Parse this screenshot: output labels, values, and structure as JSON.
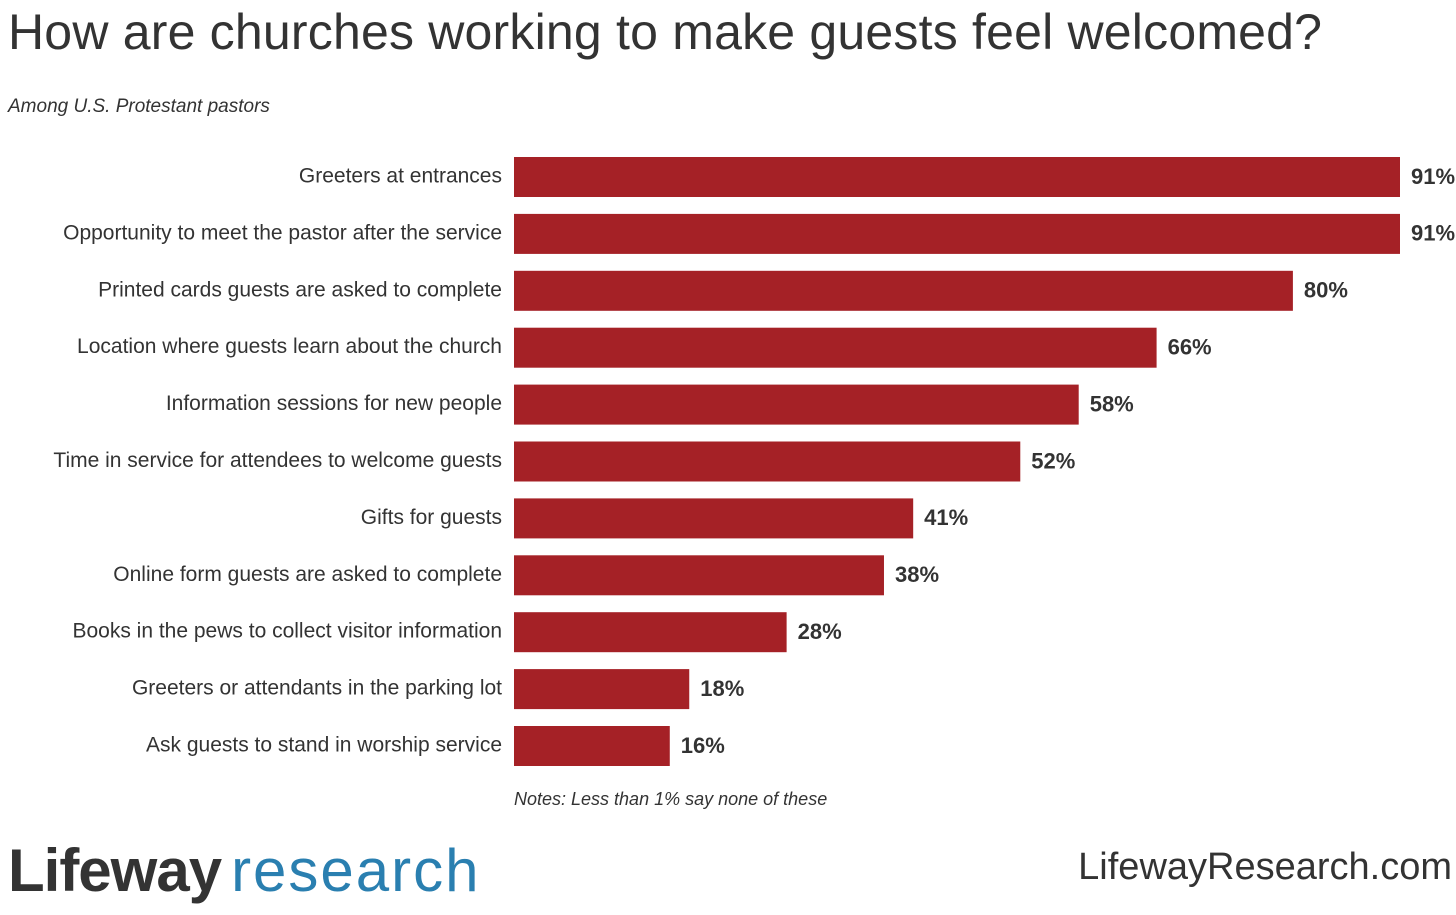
{
  "title": "How are churches working to make guests feel welcomed?",
  "subtitle": "Among U.S. Protestant pastors",
  "notes": "Notes: Less than 1% say none of these",
  "logo": {
    "part1": "Lifeway",
    "part2": "research"
  },
  "site": "LifewayResearch.com",
  "colors": {
    "bar": "#a52126",
    "text": "#333333",
    "brand_blue": "#2a7fb0"
  },
  "chart_data": {
    "type": "bar",
    "orientation": "horizontal",
    "categories": [
      "Greeters at entrances",
      "Opportunity to meet the pastor after the service",
      "Printed cards guests are asked to complete",
      "Location where guests learn about the church",
      "Information sessions for new people",
      "Time in service for attendees to welcome guests",
      "Gifts for guests",
      "Online form guests are asked to complete",
      "Books in the pews to collect visitor information",
      "Greeters or attendants in the parking lot",
      "Ask guests to stand in worship service"
    ],
    "values": [
      91,
      91,
      80,
      66,
      58,
      52,
      41,
      38,
      28,
      18,
      16
    ],
    "value_labels": [
      "91%",
      "91%",
      "80%",
      "66%",
      "58%",
      "52%",
      "41%",
      "38%",
      "28%",
      "18%",
      "16%"
    ],
    "xlim": [
      0,
      91
    ],
    "grid": false,
    "legend": "none"
  }
}
